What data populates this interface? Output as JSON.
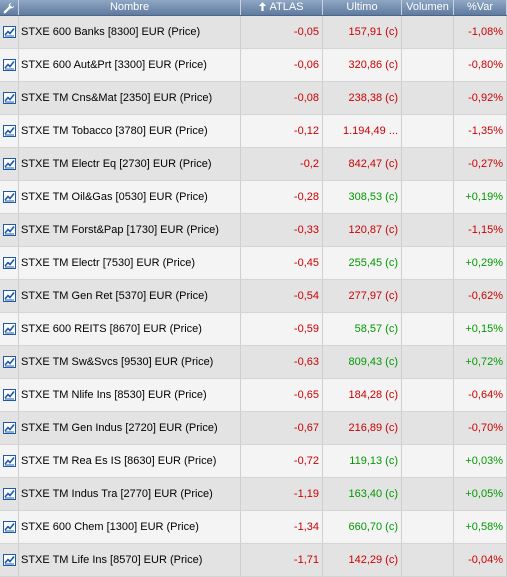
{
  "header": {
    "icon": "wrench-icon",
    "columns": {
      "name": "Nombre",
      "change": "ATLAS",
      "last": "Ultimo",
      "volume": "Volumen",
      "pct": "%Var"
    },
    "sort_icon": "sort-up-arrow-icon"
  },
  "colors": {
    "negative": "#cc0000",
    "positive": "#009900",
    "header": "#6e87ab"
  },
  "rows": [
    {
      "name": "STXE 600 Banks [8300] EUR (Price)",
      "change": "-0,05",
      "last": "157,91 (c)",
      "volume": "",
      "pct": "-1,08%",
      "trend": "neg"
    },
    {
      "name": "STXE 600 Aut&Prt [3300] EUR (Price)",
      "change": "-0,06",
      "last": "320,86 (c)",
      "volume": "",
      "pct": "-0,80%",
      "trend": "neg"
    },
    {
      "name": "STXE TM Cns&Mat [2350] EUR (Price)",
      "change": "-0,08",
      "last": "238,38 (c)",
      "volume": "",
      "pct": "-0,92%",
      "trend": "neg"
    },
    {
      "name": "STXE TM Tobacco [3780] EUR (Price)",
      "change": "-0,12",
      "last": "1.194,49 ...",
      "volume": "",
      "pct": "-1,35%",
      "trend": "neg"
    },
    {
      "name": "STXE TM Electr Eq [2730] EUR (Price)",
      "change": "-0,2",
      "last": "842,47 (c)",
      "volume": "",
      "pct": "-0,27%",
      "trend": "neg"
    },
    {
      "name": "STXE TM Oil&Gas [0530] EUR (Price)",
      "change": "-0,28",
      "last": "308,53 (c)",
      "volume": "",
      "pct": "+0,19%",
      "trend": "pos"
    },
    {
      "name": "STXE TM Forst&Pap [1730] EUR (Price)",
      "change": "-0,33",
      "last": "120,87 (c)",
      "volume": "",
      "pct": "-1,15%",
      "trend": "neg"
    },
    {
      "name": "STXE TM Electr [7530] EUR (Price)",
      "change": "-0,45",
      "last": "255,45 (c)",
      "volume": "",
      "pct": "+0,29%",
      "trend": "pos"
    },
    {
      "name": "STXE TM Gen Ret [5370] EUR (Price)",
      "change": "-0,54",
      "last": "277,97 (c)",
      "volume": "",
      "pct": "-0,62%",
      "trend": "neg"
    },
    {
      "name": "STXE 600 REITS [8670] EUR (Price)",
      "change": "-0,59",
      "last": "58,57 (c)",
      "volume": "",
      "pct": "+0,15%",
      "trend": "pos"
    },
    {
      "name": "STXE TM Sw&Svcs [9530] EUR (Price)",
      "change": "-0,63",
      "last": "809,43 (c)",
      "volume": "",
      "pct": "+0,72%",
      "trend": "pos"
    },
    {
      "name": "STXE TM Nlife Ins [8530] EUR (Price)",
      "change": "-0,65",
      "last": "184,28 (c)",
      "volume": "",
      "pct": "-0,64%",
      "trend": "neg"
    },
    {
      "name": "STXE TM Gen Indus [2720] EUR (Price)",
      "change": "-0,67",
      "last": "216,89 (c)",
      "volume": "",
      "pct": "-0,70%",
      "trend": "neg"
    },
    {
      "name": "STXE TM Rea Es IS [8630] EUR (Price)",
      "change": "-0,72",
      "last": "119,13 (c)",
      "volume": "",
      "pct": "+0,03%",
      "trend": "pos"
    },
    {
      "name": "STXE TM Indus Tra [2770] EUR (Price)",
      "change": "-1,19",
      "last": "163,40 (c)",
      "volume": "",
      "pct": "+0,05%",
      "trend": "pos"
    },
    {
      "name": "STXE 600 Chem [1300] EUR (Price)",
      "change": "-1,34",
      "last": "660,70 (c)",
      "volume": "",
      "pct": "+0,58%",
      "trend": "pos"
    },
    {
      "name": "STXE TM Life Ins [8570] EUR (Price)",
      "change": "-1,71",
      "last": "142,29 (c)",
      "volume": "",
      "pct": "-0,04%",
      "trend": "neg"
    }
  ]
}
